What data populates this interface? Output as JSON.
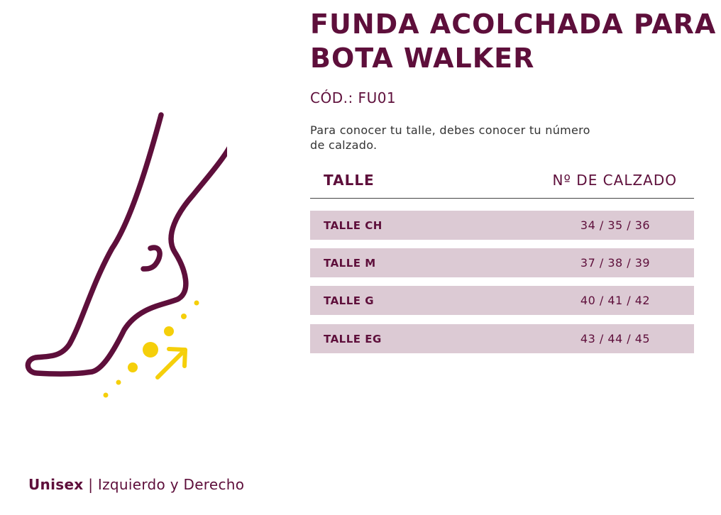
{
  "product": {
    "title": "FUNDA ACOLCHADA PARA BOTA WALKER",
    "code": "CÓD.: FU01",
    "intro": "Para conocer tu talle, debes conocer tu número de calzado."
  },
  "size_table": {
    "headers": {
      "size": "TALLE",
      "shoe": "Nº DE CALZADO"
    },
    "rows": [
      {
        "size": "TALLE CH",
        "shoe": "34 / 35 / 36"
      },
      {
        "size": "TALLE M",
        "shoe": "37 / 38 / 39"
      },
      {
        "size": "TALLE G",
        "shoe": "40 / 41 / 42"
      },
      {
        "size": "TALLE EG",
        "shoe": "43 / 44 / 45"
      }
    ]
  },
  "footer": {
    "label": "Unisex",
    "separator": "|",
    "detail": "Izquierdo y Derecho"
  },
  "illustration": {
    "name": "foot-outline-icon",
    "accent_name": "arrow-dots-icon"
  },
  "colors": {
    "primary": "#5e0f3b",
    "row_background": "#dccad4",
    "accent": "#f5cf0a",
    "text": "#333333"
  }
}
